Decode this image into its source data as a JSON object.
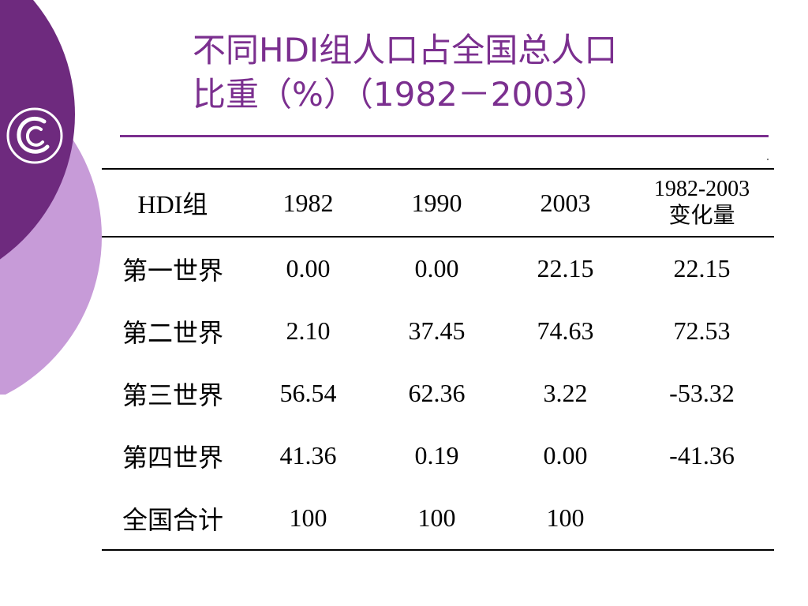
{
  "slide": {
    "title_line1": "不同HDI组人口占全国总人口",
    "title_line2": "比重（%）（1982－2003）",
    "colors": {
      "title": "#7b2f8f",
      "rule": "#7b2f8f",
      "decor_dark": "#6e2a7e",
      "decor_light": "#c79bd8",
      "text": "#000000"
    },
    "logo_icon": "swirl-logo-icon"
  },
  "table": {
    "headers": {
      "group": "HDI组",
      "y1982": "1982",
      "y1990": "1990",
      "y2003": "2003",
      "change_line1": "1982-2003",
      "change_line2": "变化量"
    },
    "rows": [
      {
        "group": "第一世界",
        "y1982": "0.00",
        "y1990": "0.00",
        "y2003": "22.15",
        "change": "22.15"
      },
      {
        "group": "第二世界",
        "y1982": "2.10",
        "y1990": "37.45",
        "y2003": "74.63",
        "change": "72.53"
      },
      {
        "group": "第三世界",
        "y1982": "56.54",
        "y1990": "62.36",
        "y2003": "3.22",
        "change": "-53.32"
      },
      {
        "group": "第四世界",
        "y1982": "41.36",
        "y1990": "0.19",
        "y2003": "0.00",
        "change": "-41.36"
      },
      {
        "group": "全国合计",
        "y1982": "100",
        "y1990": "100",
        "y2003": "100",
        "change": ""
      }
    ]
  }
}
